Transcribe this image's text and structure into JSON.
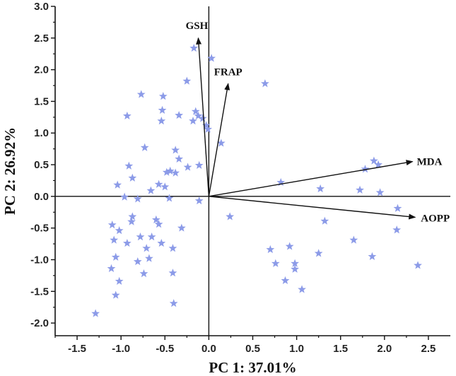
{
  "chart_data": {
    "type": "scatter",
    "title": "",
    "xlabel": "PC 1: 37.01%",
    "ylabel": "PC 2: 26.92%",
    "xlim": [
      -1.75,
      2.75
    ],
    "ylim": [
      -2.2,
      3.0
    ],
    "x_ticks": [
      "-1.5",
      "-1.0",
      "-0.5",
      "0.0",
      "0.5",
      "1.0",
      "1.5",
      "2.0",
      "2.5"
    ],
    "y_ticks": [
      "3.0",
      "2.5",
      "2.0",
      "1.5",
      "1.0",
      "0.5",
      "0.0",
      "-0.5",
      "-1.0",
      "-1.5",
      "-2.0"
    ],
    "marker_color": "#8c9be8",
    "vectors": [
      {
        "name": "GSH",
        "x": -0.12,
        "y": 2.5
      },
      {
        "name": "FRAP",
        "x": 0.22,
        "y": 1.78
      },
      {
        "name": "MDA",
        "x": 2.32,
        "y": 0.55
      },
      {
        "name": "AOPP",
        "x": 2.35,
        "y": -0.33
      }
    ],
    "points": [
      [
        -0.17,
        2.34
      ],
      [
        0.03,
        2.18
      ],
      [
        -0.25,
        1.82
      ],
      [
        0.64,
        1.78
      ],
      [
        -0.77,
        1.61
      ],
      [
        -0.52,
        1.58
      ],
      [
        -0.93,
        1.27
      ],
      [
        -0.53,
        1.36
      ],
      [
        -0.34,
        1.28
      ],
      [
        -0.15,
        1.34
      ],
      [
        -0.12,
        1.27
      ],
      [
        -0.18,
        1.19
      ],
      [
        -0.07,
        1.23
      ],
      [
        -0.54,
        1.19
      ],
      [
        -0.03,
        1.12
      ],
      [
        -0.01,
        1.06
      ],
      [
        -0.73,
        0.77
      ],
      [
        -0.38,
        0.73
      ],
      [
        0.14,
        0.84
      ],
      [
        -0.34,
        0.59
      ],
      [
        -0.11,
        0.49
      ],
      [
        1.88,
        0.56
      ],
      [
        1.93,
        0.5
      ],
      [
        -0.91,
        0.48
      ],
      [
        -0.24,
        0.46
      ],
      [
        -0.44,
        0.4
      ],
      [
        -0.48,
        0.38
      ],
      [
        1.78,
        0.43
      ],
      [
        -0.87,
        0.29
      ],
      [
        -0.38,
        0.37
      ],
      [
        -1.04,
        0.18
      ],
      [
        0.82,
        0.22
      ],
      [
        -0.66,
        0.09
      ],
      [
        -0.57,
        0.19
      ],
      [
        -0.5,
        0.15
      ],
      [
        1.27,
        0.12
      ],
      [
        1.72,
        0.1
      ],
      [
        1.95,
        0.06
      ],
      [
        -0.96,
        -0.01
      ],
      [
        -0.81,
        -0.04
      ],
      [
        -0.45,
        -0.03
      ],
      [
        -0.11,
        -0.07
      ],
      [
        0.24,
        -0.32
      ],
      [
        2.15,
        -0.19
      ],
      [
        -1.1,
        -0.45
      ],
      [
        -0.87,
        -0.32
      ],
      [
        -0.88,
        -0.4
      ],
      [
        -0.6,
        -0.37
      ],
      [
        -0.57,
        -0.44
      ],
      [
        -0.31,
        -0.5
      ],
      [
        1.32,
        -0.39
      ],
      [
        2.14,
        -0.53
      ],
      [
        -1.08,
        -0.69
      ],
      [
        -1.02,
        -0.54
      ],
      [
        -0.78,
        -0.64
      ],
      [
        -0.65,
        -0.64
      ],
      [
        -0.93,
        -0.74
      ],
      [
        -0.71,
        -0.82
      ],
      [
        -0.54,
        -0.74
      ],
      [
        -0.41,
        -0.82
      ],
      [
        1.65,
        -0.69
      ],
      [
        0.7,
        -0.84
      ],
      [
        0.92,
        -0.79
      ],
      [
        1.25,
        -0.9
      ],
      [
        -1.06,
        -0.96
      ],
      [
        -0.81,
        -1.03
      ],
      [
        -0.68,
        -0.98
      ],
      [
        1.86,
        -0.95
      ],
      [
        -1.11,
        -1.14
      ],
      [
        -0.74,
        -1.22
      ],
      [
        0.76,
        -1.06
      ],
      [
        0.98,
        -1.06
      ],
      [
        0.98,
        -1.15
      ],
      [
        2.38,
        -1.09
      ],
      [
        -1.02,
        -1.34
      ],
      [
        -0.41,
        -1.21
      ],
      [
        0.87,
        -1.33
      ],
      [
        1.06,
        -1.47
      ],
      [
        -1.06,
        -1.56
      ],
      [
        -0.4,
        -1.69
      ],
      [
        -1.29,
        -1.85
      ]
    ]
  }
}
